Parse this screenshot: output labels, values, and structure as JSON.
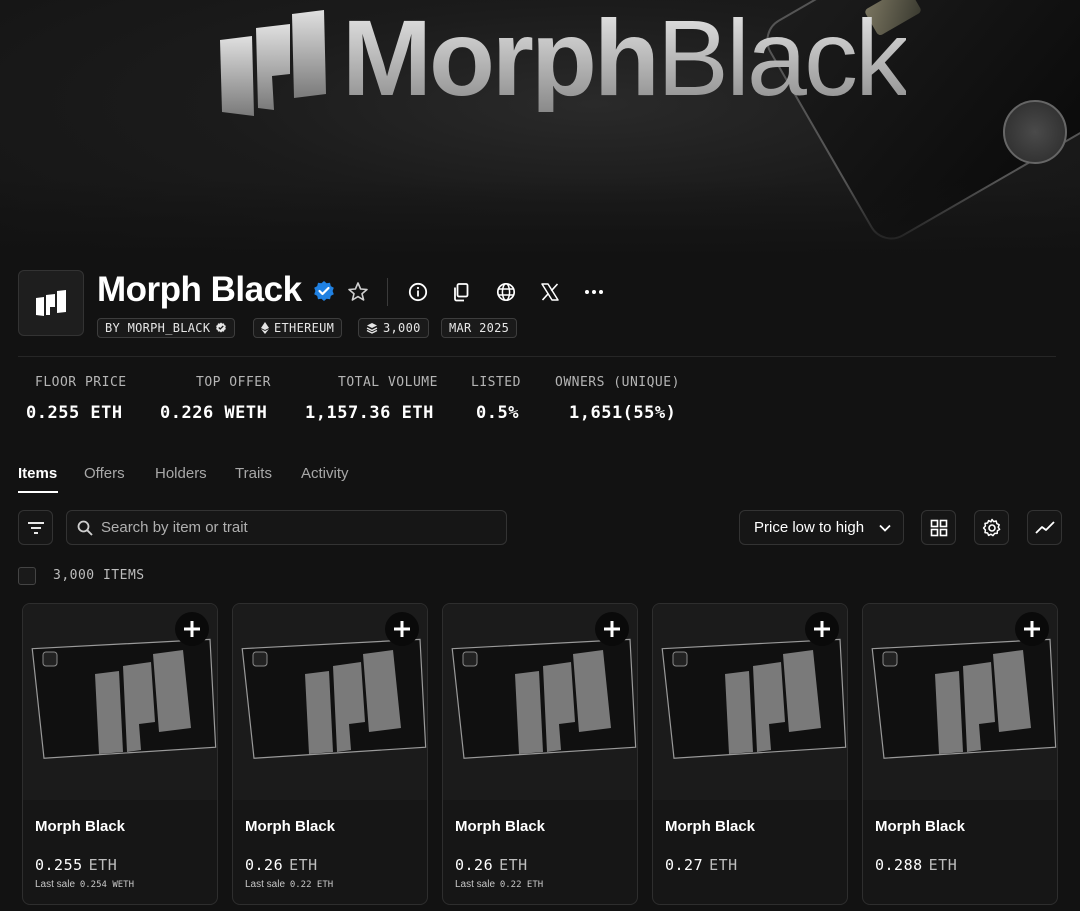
{
  "banner": {
    "wordmark_bold": "Morph",
    "wordmark_light": "Black"
  },
  "collection": {
    "name": "Morph Black",
    "creator": "BY MORPH_BLACK",
    "chain": "ETHEREUM",
    "supply": "3,000",
    "date": "MAR 2025"
  },
  "stats": [
    {
      "label": "FLOOR PRICE",
      "value": "0.255 ETH"
    },
    {
      "label": "TOP OFFER",
      "value": "0.226 WETH"
    },
    {
      "label": "TOTAL VOLUME",
      "value": "1,157.36 ETH"
    },
    {
      "label": "LISTED",
      "value": "0.5%"
    },
    {
      "label": "OWNERS (UNIQUE)",
      "value": "1,651(55%)"
    }
  ],
  "tabs": [
    "Items",
    "Offers",
    "Holders",
    "Traits",
    "Activity"
  ],
  "toolbar": {
    "search_placeholder": "Search by item or trait",
    "sort_label": "Price low to high"
  },
  "item_count": "3,000 ITEMS",
  "items": [
    {
      "name": "Morph Black",
      "price": "0.255",
      "unit": "ETH",
      "last_label": "Last sale",
      "last_value": "0.254 WETH"
    },
    {
      "name": "Morph Black",
      "price": "0.26",
      "unit": "ETH",
      "last_label": "Last sale",
      "last_value": "0.22 ETH"
    },
    {
      "name": "Morph Black",
      "price": "0.26",
      "unit": "ETH",
      "last_label": "Last sale",
      "last_value": "0.22 ETH"
    },
    {
      "name": "Morph Black",
      "price": "0.27",
      "unit": "ETH",
      "last_label": "",
      "last_value": ""
    },
    {
      "name": "Morph Black",
      "price": "0.288",
      "unit": "ETH",
      "last_label": "",
      "last_value": ""
    }
  ],
  "colors": {
    "background": "#121212",
    "verified": "#2081e2",
    "border": "#333333"
  }
}
